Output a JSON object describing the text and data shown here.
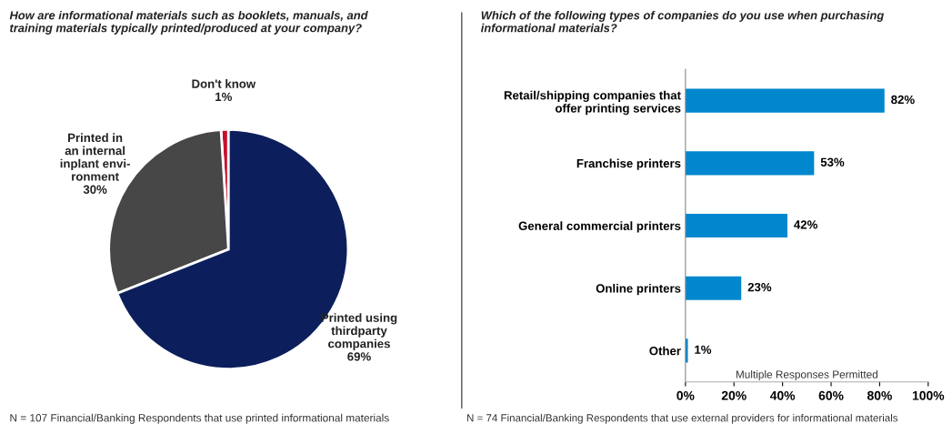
{
  "chart_data": [
    {
      "type": "pie",
      "title": "How are informational materials such as booklets, manuals, and\ntraining materials typically printed/produced at your company?",
      "categories": [
        "Don't know",
        "Printed in\nan internal\ninplant envi-\nronment",
        "Printed using\nthirdparty\ncompanies"
      ],
      "values": [
        1,
        30,
        69
      ],
      "colors": [
        "#c8102e",
        "#474747",
        "#0c1f5c"
      ],
      "value_labels": [
        "1%",
        "30%",
        "69%"
      ],
      "annotations": [
        "N = 107 Financial/Banking Respondents that use printed informational materials"
      ]
    },
    {
      "type": "bar",
      "orientation": "horizontal",
      "title": "Which of the following types of companies do you use when purchasing\ninformational materials?",
      "categories": [
        "Retail/shipping companies that\noffer printing services",
        "Franchise printers",
        "General commercial printers",
        "Online printers",
        "Other"
      ],
      "values": [
        82,
        53,
        42,
        23,
        1
      ],
      "color": "#0087cd",
      "value_labels": [
        "82%",
        "53%",
        "42%",
        "23%",
        "1%"
      ],
      "xlim": [
        0,
        100
      ],
      "xticks": [
        {
          "value": 0,
          "label": "0%"
        },
        {
          "value": 20,
          "label": "20%"
        },
        {
          "value": 40,
          "label": "40%"
        },
        {
          "value": 60,
          "label": "60%"
        },
        {
          "value": 80,
          "label": "80%"
        },
        {
          "value": 100,
          "label": "100%"
        }
      ],
      "grid": false,
      "annotations": [
        "Multiple Responses Permitted",
        "N = 74 Financial/Banking Respondents that use external providers for informational materials"
      ]
    }
  ]
}
